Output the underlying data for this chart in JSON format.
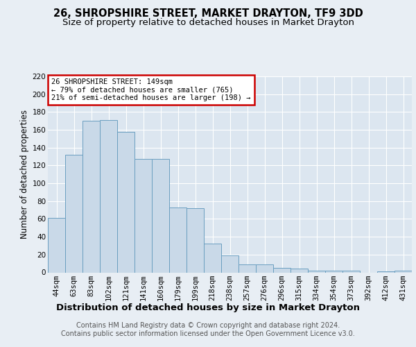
{
  "title": "26, SHROPSHIRE STREET, MARKET DRAYTON, TF9 3DD",
  "subtitle": "Size of property relative to detached houses in Market Drayton",
  "xlabel": "Distribution of detached houses by size in Market Drayton",
  "ylabel": "Number of detached properties",
  "categories": [
    "44sqm",
    "63sqm",
    "83sqm",
    "102sqm",
    "121sqm",
    "141sqm",
    "160sqm",
    "179sqm",
    "199sqm",
    "218sqm",
    "238sqm",
    "257sqm",
    "276sqm",
    "296sqm",
    "315sqm",
    "334sqm",
    "354sqm",
    "373sqm",
    "392sqm",
    "412sqm",
    "431sqm"
  ],
  "values": [
    61,
    132,
    170,
    171,
    158,
    127,
    127,
    73,
    72,
    32,
    19,
    9,
    9,
    5,
    4,
    2,
    2,
    2,
    0,
    1,
    2
  ],
  "bar_color": "#c9d9e8",
  "bar_edge_color": "#6a9fc0",
  "annotation_text": "26 SHROPSHIRE STREET: 149sqm\n← 79% of detached houses are smaller (765)\n21% of semi-detached houses are larger (198) →",
  "annotation_box_color": "#ffffff",
  "annotation_box_edge_color": "#cc0000",
  "ylim": [
    0,
    220
  ],
  "yticks": [
    0,
    20,
    40,
    60,
    80,
    100,
    120,
    140,
    160,
    180,
    200,
    220
  ],
  "background_color": "#e8eef4",
  "plot_background_color": "#dce6f0",
  "grid_color": "#ffffff",
  "footer_text": "Contains HM Land Registry data © Crown copyright and database right 2024.\nContains public sector information licensed under the Open Government Licence v3.0.",
  "title_fontsize": 10.5,
  "subtitle_fontsize": 9.5,
  "ylabel_fontsize": 8.5,
  "xlabel_fontsize": 9.5,
  "tick_fontsize": 7.5,
  "annotation_fontsize": 7.5,
  "footer_fontsize": 7.0
}
